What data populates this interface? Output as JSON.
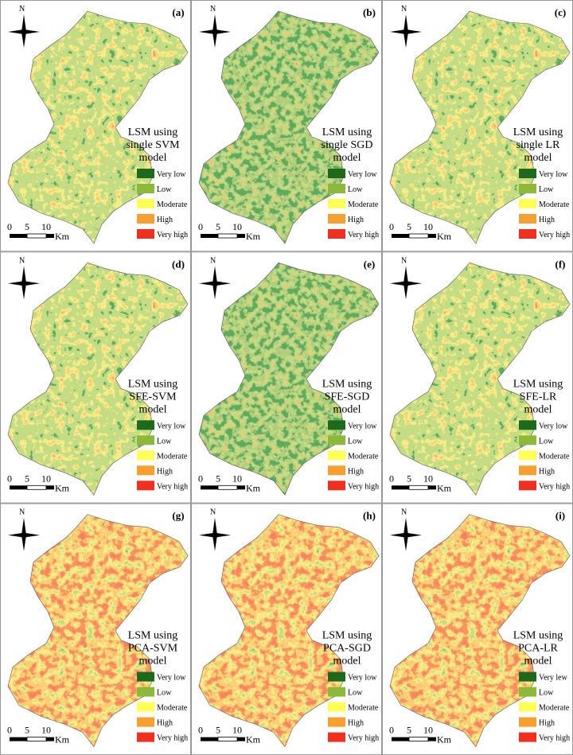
{
  "north": "N",
  "scale": {
    "ticks": [
      "0",
      "5",
      "10"
    ],
    "unit": "Km"
  },
  "legend_colors": [
    "#1d6a1d",
    "#8cb93a",
    "#ffff55",
    "#f5a030",
    "#ef2f1f"
  ],
  "panels": [
    {
      "label": "(a)",
      "title": [
        "LSM using",
        "single SVM",
        "model"
      ],
      "legend": [
        "Very low",
        "Low",
        "Moderate",
        "High",
        "Very high"
      ]
    },
    {
      "label": "(b)",
      "title": [
        "LSM using",
        "single  SGD",
        "model"
      ],
      "legend": [
        "Very low",
        "Low",
        "Moderate",
        "High",
        "Very high"
      ]
    },
    {
      "label": "(c)",
      "title": [
        "LSM using",
        "single  LR",
        "model"
      ],
      "legend": [
        "Very low",
        "Low",
        "Moderate",
        "High",
        "Very high"
      ]
    },
    {
      "label": "(d)",
      "title": [
        "LSM using",
        "SFE-SVM",
        "model"
      ],
      "legend": [
        "Very low",
        "Low",
        "Moderate",
        "High",
        "Very high"
      ]
    },
    {
      "label": "(e)",
      "title": [
        "LSM using",
        "SFE-SGD",
        "model"
      ],
      "legend": [
        "Very low",
        "Low",
        "Moderate",
        "High",
        "Very high"
      ]
    },
    {
      "label": "(f)",
      "title": [
        "LSM using",
        "SFE-LR",
        "model"
      ],
      "legend": [
        "Very low",
        "Low",
        "Moderate",
        "High",
        "Very high"
      ]
    },
    {
      "label": "(g)",
      "title": [
        "LSM using",
        "PCA-SVM",
        "model"
      ],
      "legend": [
        "Very low",
        "Low",
        "Moderate",
        "High",
        "Very high"
      ]
    },
    {
      "label": "(h)",
      "title": [
        "LSM using",
        "PCA-SGD",
        "model"
      ],
      "legend": [
        "Very low",
        "Low",
        "Moderate",
        "High",
        "Very high"
      ]
    },
    {
      "label": "(i)",
      "title": [
        "LSM using",
        "PCA-LR",
        "model"
      ],
      "legend": [
        "Very lew",
        "Low",
        "Moderate",
        "High",
        "Very high"
      ]
    }
  ]
}
